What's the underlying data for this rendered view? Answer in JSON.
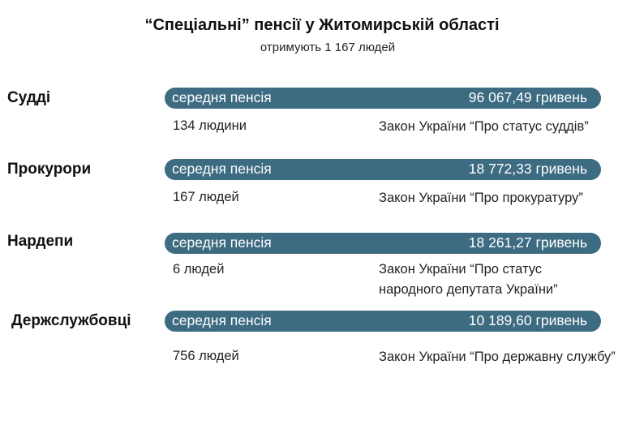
{
  "header": {
    "title": "“Спеціальні” пенсії у Житомирській області",
    "subtitle": "отримують 1 167 людей"
  },
  "theme": {
    "bar_color": "#3d6b81",
    "text_color": "#222222"
  },
  "rows": [
    {
      "category": "Судді",
      "bar_label": "середня пенсія",
      "bar_value": "96 067,49 гривень",
      "count": "134 людини",
      "law": "Закон України “Про статус суддів”"
    },
    {
      "category": "Прокурори",
      "bar_label": "середня пенсія",
      "bar_value": "18 772,33 гривень",
      "count": "167 людей",
      "law": "Закон України “Про прокуратуру”"
    },
    {
      "category": "Нардепи",
      "bar_label": "середня пенсія",
      "bar_value": "18 261,27 гривень",
      "count": "6 людей",
      "law": "Закон України “Про статус народного депутата України”"
    },
    {
      "category": "Держслужбовці",
      "bar_label": "середня пенсія",
      "bar_value": "10 189,60 гривень",
      "count": "756 людей",
      "law": "Закон України “Про державну службу”"
    }
  ]
}
